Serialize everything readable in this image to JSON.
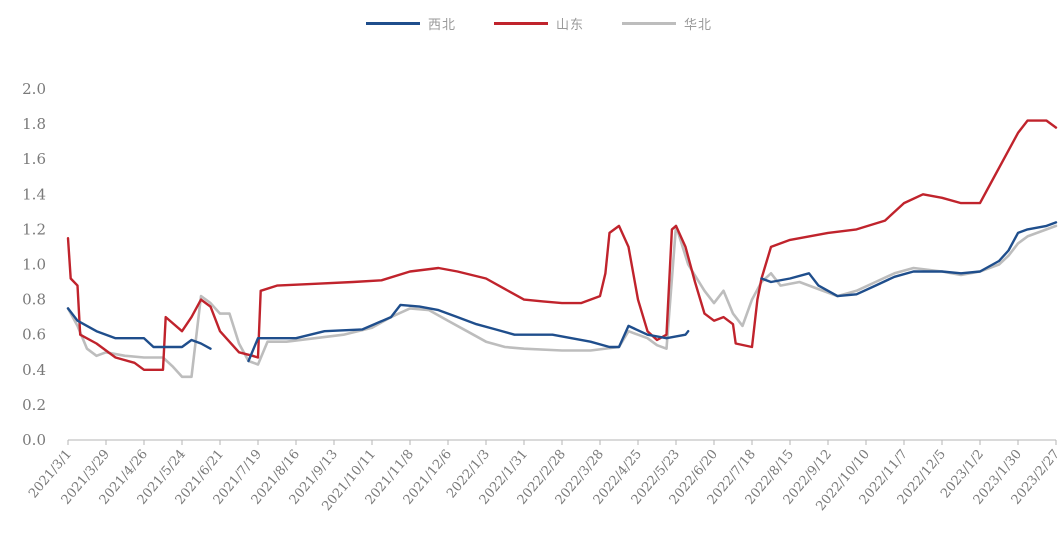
{
  "chart_data": {
    "type": "line",
    "title": "",
    "xlabel": "",
    "ylabel": "",
    "ylim": [
      0,
      2.0
    ],
    "yticks": [
      "0.0",
      "0.2",
      "0.4",
      "0.6",
      "0.8",
      "1.0",
      "1.2",
      "1.4",
      "1.6",
      "1.8",
      "2.0"
    ],
    "xlim": [
      "2021/3/1",
      "2023/2/27"
    ],
    "categories": [
      "2021/3/1",
      "2021/3/29",
      "2021/4/26",
      "2021/5/24",
      "2021/6/21",
      "2021/7/19",
      "2021/8/16",
      "2021/9/13",
      "2021/10/11",
      "2021/11/8",
      "2021/12/6",
      "2022/1/3",
      "2022/1/31",
      "2022/2/28",
      "2022/3/28",
      "2022/4/25",
      "2022/5/23",
      "2022/6/20",
      "2022/7/18",
      "2022/8/15",
      "2022/9/12",
      "2022/10/10",
      "2022/11/7",
      "2022/12/5",
      "2023/1/2",
      "2023/1/30",
      "2023/2/27"
    ],
    "legend_position": "top-center",
    "grid": false,
    "series": [
      {
        "name": "西北",
        "color": "#1f4e8c",
        "points": [
          [
            "2021/3/1",
            0.75
          ],
          [
            "2021/3/8",
            0.68
          ],
          [
            "2021/3/22",
            0.62
          ],
          [
            "2021/4/5",
            0.58
          ],
          [
            "2021/4/26",
            0.58
          ],
          [
            "2021/5/3",
            0.53
          ],
          [
            "2021/5/17",
            0.53
          ],
          [
            "2021/5/24",
            0.53
          ],
          [
            "2021/5/31",
            0.57
          ],
          [
            "2021/6/7",
            0.55
          ],
          [
            "2021/6/14",
            0.52
          ],
          null,
          [
            "2021/7/12",
            0.45
          ],
          [
            "2021/7/19",
            0.58
          ],
          [
            "2021/8/16",
            0.58
          ],
          [
            "2021/9/6",
            0.62
          ],
          [
            "2021/10/4",
            0.63
          ],
          [
            "2021/10/25",
            0.7
          ],
          [
            "2021/11/1",
            0.77
          ],
          [
            "2021/11/15",
            0.76
          ],
          [
            "2021/11/29",
            0.74
          ],
          [
            "2021/12/13",
            0.7
          ],
          [
            "2021/12/27",
            0.66
          ],
          [
            "2022/1/10",
            0.63
          ],
          [
            "2022/1/24",
            0.6
          ],
          [
            "2022/2/21",
            0.6
          ],
          [
            "2022/3/7",
            0.58
          ],
          [
            "2022/3/21",
            0.56
          ],
          [
            "2022/4/4",
            0.53
          ],
          [
            "2022/4/11",
            0.53
          ],
          [
            "2022/4/18",
            0.65
          ],
          [
            "2022/5/2",
            0.6
          ],
          [
            "2022/5/16",
            0.58
          ],
          [
            "2022/5/30",
            0.6
          ],
          [
            "2022/6/1",
            0.62
          ],
          null,
          [
            "2022/7/25",
            0.92
          ],
          [
            "2022/8/1",
            0.9
          ],
          [
            "2022/8/15",
            0.92
          ],
          [
            "2022/8/29",
            0.95
          ],
          [
            "2022/9/5",
            0.88
          ],
          [
            "2022/9/19",
            0.82
          ],
          [
            "2022/10/3",
            0.83
          ],
          [
            "2022/10/17",
            0.88
          ],
          [
            "2022/10/31",
            0.93
          ],
          [
            "2022/11/14",
            0.96
          ],
          [
            "2022/12/5",
            0.96
          ],
          [
            "2022/12/19",
            0.95
          ],
          [
            "2023/1/2",
            0.96
          ],
          [
            "2023/1/16",
            1.02
          ],
          [
            "2023/1/23",
            1.08
          ],
          [
            "2023/1/30",
            1.18
          ],
          [
            "2023/2/6",
            1.2
          ],
          [
            "2023/2/20",
            1.22
          ],
          [
            "2023/2/27",
            1.24
          ]
        ]
      },
      {
        "name": "山东",
        "color": "#c0232c",
        "points": [
          [
            "2021/3/1",
            1.15
          ],
          [
            "2021/3/3",
            0.92
          ],
          [
            "2021/3/8",
            0.88
          ],
          [
            "2021/3/10",
            0.6
          ],
          [
            "2021/3/22",
            0.55
          ],
          [
            "2021/4/5",
            0.47
          ],
          [
            "2021/4/19",
            0.44
          ],
          [
            "2021/4/26",
            0.4
          ],
          [
            "2021/5/10",
            0.4
          ],
          [
            "2021/5/12",
            0.7
          ],
          [
            "2021/5/24",
            0.62
          ],
          [
            "2021/5/31",
            0.7
          ],
          [
            "2021/6/7",
            0.8
          ],
          [
            "2021/6/14",
            0.76
          ],
          [
            "2021/6/21",
            0.62
          ],
          [
            "2021/7/5",
            0.5
          ],
          [
            "2021/7/15",
            0.48
          ],
          [
            "2021/7/19",
            0.47
          ],
          [
            "2021/7/21",
            0.85
          ],
          [
            "2021/8/2",
            0.88
          ],
          [
            "2021/8/30",
            0.89
          ],
          [
            "2021/9/27",
            0.9
          ],
          [
            "2021/10/18",
            0.91
          ],
          [
            "2021/11/8",
            0.96
          ],
          [
            "2021/11/29",
            0.98
          ],
          [
            "2021/12/13",
            0.96
          ],
          [
            "2022/1/3",
            0.92
          ],
          [
            "2022/1/17",
            0.86
          ],
          [
            "2022/1/31",
            0.8
          ],
          [
            "2022/2/14",
            0.79
          ],
          [
            "2022/2/28",
            0.78
          ],
          [
            "2022/3/14",
            0.78
          ],
          [
            "2022/3/28",
            0.82
          ],
          [
            "2022/4/1",
            0.95
          ],
          [
            "2022/4/4",
            1.18
          ],
          [
            "2022/4/11",
            1.22
          ],
          [
            "2022/4/18",
            1.1
          ],
          [
            "2022/4/25",
            0.8
          ],
          [
            "2022/5/2",
            0.62
          ],
          [
            "2022/5/9",
            0.57
          ],
          [
            "2022/5/16",
            0.6
          ],
          [
            "2022/5/20",
            1.2
          ],
          [
            "2022/5/23",
            1.22
          ],
          [
            "2022/5/30",
            1.1
          ],
          [
            "2022/6/6",
            0.9
          ],
          [
            "2022/6/13",
            0.72
          ],
          [
            "2022/6/20",
            0.68
          ],
          [
            "2022/6/27",
            0.7
          ],
          [
            "2022/7/4",
            0.66
          ],
          [
            "2022/7/6",
            0.55
          ],
          [
            "2022/7/18",
            0.53
          ],
          [
            "2022/7/22",
            0.8
          ],
          [
            "2022/7/25",
            0.92
          ],
          [
            "2022/8/1",
            1.1
          ],
          [
            "2022/8/15",
            1.14
          ],
          [
            "2022/8/29",
            1.16
          ],
          [
            "2022/9/12",
            1.18
          ],
          [
            "2022/10/3",
            1.2
          ],
          [
            "2022/10/24",
            1.25
          ],
          [
            "2022/11/7",
            1.35
          ],
          [
            "2022/11/21",
            1.4
          ],
          [
            "2022/12/5",
            1.38
          ],
          [
            "2022/12/19",
            1.35
          ],
          [
            "2023/1/2",
            1.35
          ],
          [
            "2023/1/9",
            1.45
          ],
          [
            "2023/1/23",
            1.65
          ],
          [
            "2023/1/30",
            1.75
          ],
          [
            "2023/2/6",
            1.82
          ],
          [
            "2023/2/20",
            1.82
          ],
          [
            "2023/2/27",
            1.78
          ]
        ]
      },
      {
        "name": "华北",
        "color": "#bdbdbd",
        "points": [
          [
            "2021/3/1",
            0.75
          ],
          [
            "2021/3/8",
            0.65
          ],
          [
            "2021/3/15",
            0.52
          ],
          [
            "2021/3/22",
            0.48
          ],
          [
            "2021/3/29",
            0.5
          ],
          [
            "2021/4/12",
            0.48
          ],
          [
            "2021/4/26",
            0.47
          ],
          [
            "2021/5/10",
            0.47
          ],
          [
            "2021/5/17",
            0.42
          ],
          [
            "2021/5/24",
            0.36
          ],
          [
            "2021/5/31",
            0.36
          ],
          [
            "2021/6/7",
            0.82
          ],
          [
            "2021/6/14",
            0.78
          ],
          [
            "2021/6/21",
            0.72
          ],
          [
            "2021/6/28",
            0.72
          ],
          [
            "2021/7/5",
            0.55
          ],
          [
            "2021/7/12",
            0.45
          ],
          [
            "2021/7/19",
            0.43
          ],
          [
            "2021/7/26",
            0.56
          ],
          [
            "2021/8/9",
            0.56
          ],
          [
            "2021/8/30",
            0.58
          ],
          [
            "2021/9/20",
            0.6
          ],
          [
            "2021/10/11",
            0.64
          ],
          [
            "2021/10/25",
            0.7
          ],
          [
            "2021/11/8",
            0.75
          ],
          [
            "2021/11/22",
            0.74
          ],
          [
            "2021/12/6",
            0.68
          ],
          [
            "2021/12/20",
            0.62
          ],
          [
            "2022/1/3",
            0.56
          ],
          [
            "2022/1/17",
            0.53
          ],
          [
            "2022/1/31",
            0.52
          ],
          [
            "2022/2/28",
            0.51
          ],
          [
            "2022/3/21",
            0.51
          ],
          [
            "2022/4/11",
            0.53
          ],
          [
            "2022/4/18",
            0.62
          ],
          [
            "2022/4/25",
            0.6
          ],
          [
            "2022/5/2",
            0.58
          ],
          [
            "2022/5/9",
            0.54
          ],
          [
            "2022/5/16",
            0.52
          ],
          [
            "2022/5/23",
            1.22
          ],
          [
            "2022/6/1",
            1.0
          ],
          [
            "2022/6/13",
            0.85
          ],
          [
            "2022/6/20",
            0.78
          ],
          [
            "2022/6/27",
            0.85
          ],
          [
            "2022/7/4",
            0.72
          ],
          [
            "2022/7/11",
            0.65
          ],
          [
            "2022/7/18",
            0.8
          ],
          [
            "2022/7/25",
            0.9
          ],
          [
            "2022/8/1",
            0.95
          ],
          [
            "2022/8/8",
            0.88
          ],
          [
            "2022/8/22",
            0.9
          ],
          [
            "2022/9/5",
            0.86
          ],
          [
            "2022/9/19",
            0.82
          ],
          [
            "2022/10/3",
            0.85
          ],
          [
            "2022/10/17",
            0.9
          ],
          [
            "2022/10/31",
            0.95
          ],
          [
            "2022/11/14",
            0.98
          ],
          [
            "2022/12/5",
            0.96
          ],
          [
            "2022/12/19",
            0.94
          ],
          [
            "2023/1/2",
            0.96
          ],
          [
            "2023/1/16",
            1.0
          ],
          [
            "2023/1/23",
            1.05
          ],
          [
            "2023/1/30",
            1.12
          ],
          [
            "2023/2/6",
            1.16
          ],
          [
            "2023/2/20",
            1.2
          ],
          [
            "2023/2/27",
            1.22
          ]
        ]
      }
    ]
  }
}
